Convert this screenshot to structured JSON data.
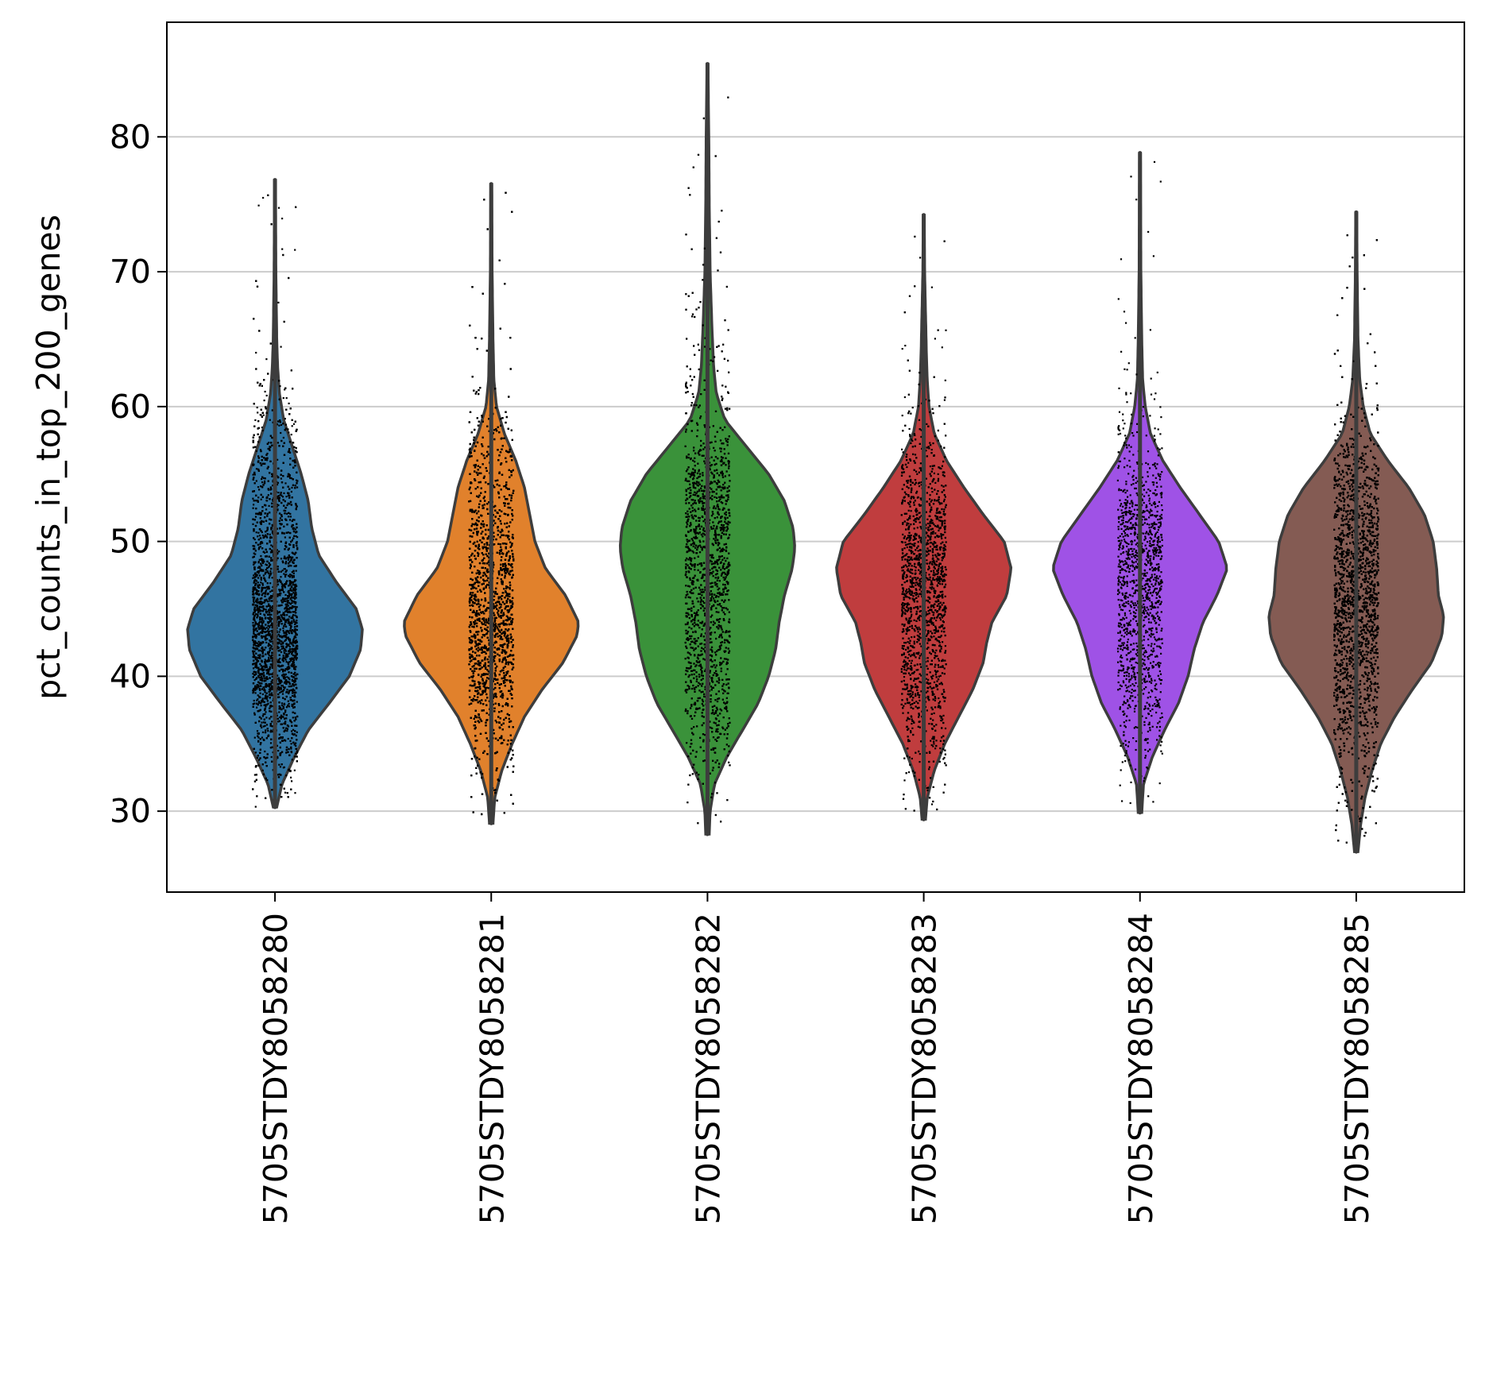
{
  "chart_data": {
    "type": "violin",
    "ylabel": "pct_counts_in_top_200_genes",
    "xlabel": "",
    "ylim": [
      24,
      88.5
    ],
    "yticks": [
      30,
      40,
      50,
      60,
      70,
      80
    ],
    "grid": "horizontal",
    "legend": "none",
    "categories": [
      "5705STDY8058280",
      "5705STDY8058281",
      "5705STDY8058282",
      "5705STDY8058283",
      "5705STDY8058284",
      "5705STDY8058285"
    ],
    "colors": [
      "#3274a1",
      "#e1812c",
      "#3a923a",
      "#c03d3e",
      "#9f52e6",
      "#845b53"
    ],
    "point_color": "#000000",
    "outline_color": "#3d3d3d",
    "series": [
      {
        "range": [
          30.3,
          76.8
        ],
        "n_points": 5200,
        "density": [
          [
            30.3,
            0.02
          ],
          [
            32,
            0.08
          ],
          [
            34,
            0.22
          ],
          [
            36,
            0.38
          ],
          [
            38,
            0.62
          ],
          [
            40,
            0.85
          ],
          [
            42,
            0.98
          ],
          [
            43.5,
            1.0
          ],
          [
            45,
            0.93
          ],
          [
            47,
            0.7
          ],
          [
            49,
            0.5
          ],
          [
            51,
            0.42
          ],
          [
            53,
            0.38
          ],
          [
            55,
            0.3
          ],
          [
            57,
            0.2
          ],
          [
            59,
            0.1
          ],
          [
            61,
            0.05
          ],
          [
            63,
            0.03
          ],
          [
            65,
            0.02
          ],
          [
            70,
            0.01
          ],
          [
            76.8,
            0.005
          ]
        ]
      },
      {
        "range": [
          29.1,
          76.5
        ],
        "n_points": 5600,
        "density": [
          [
            29.1,
            0.02
          ],
          [
            31,
            0.04
          ],
          [
            33,
            0.12
          ],
          [
            35,
            0.24
          ],
          [
            37,
            0.38
          ],
          [
            39,
            0.58
          ],
          [
            41,
            0.82
          ],
          [
            43,
            0.98
          ],
          [
            44,
            1.0
          ],
          [
            46,
            0.85
          ],
          [
            48,
            0.62
          ],
          [
            50,
            0.5
          ],
          [
            52,
            0.44
          ],
          [
            54,
            0.38
          ],
          [
            56,
            0.28
          ],
          [
            58,
            0.15
          ],
          [
            60,
            0.06
          ],
          [
            62,
            0.03
          ],
          [
            65,
            0.02
          ],
          [
            70,
            0.01
          ],
          [
            76.5,
            0.005
          ]
        ]
      },
      {
        "range": [
          28.3,
          85.4
        ],
        "n_points": 3200,
        "density": [
          [
            28.3,
            0.02
          ],
          [
            30,
            0.03
          ],
          [
            32,
            0.08
          ],
          [
            34,
            0.22
          ],
          [
            36,
            0.4
          ],
          [
            38,
            0.58
          ],
          [
            40,
            0.7
          ],
          [
            42,
            0.78
          ],
          [
            44,
            0.82
          ],
          [
            46,
            0.88
          ],
          [
            48,
            0.97
          ],
          [
            49.5,
            1.0
          ],
          [
            51,
            0.98
          ],
          [
            53,
            0.88
          ],
          [
            55,
            0.7
          ],
          [
            57,
            0.45
          ],
          [
            59,
            0.2
          ],
          [
            61,
            0.1
          ],
          [
            63,
            0.07
          ],
          [
            66,
            0.05
          ],
          [
            70,
            0.03
          ],
          [
            75,
            0.02
          ],
          [
            80,
            0.015
          ],
          [
            85.4,
            0.005
          ]
        ]
      },
      {
        "range": [
          29.4,
          74.2
        ],
        "n_points": 2600,
        "density": [
          [
            29.4,
            0.02
          ],
          [
            31,
            0.04
          ],
          [
            33,
            0.12
          ],
          [
            35,
            0.24
          ],
          [
            37,
            0.4
          ],
          [
            39,
            0.56
          ],
          [
            41,
            0.68
          ],
          [
            42.5,
            0.72
          ],
          [
            44,
            0.78
          ],
          [
            46,
            0.95
          ],
          [
            48,
            1.0
          ],
          [
            50,
            0.92
          ],
          [
            52,
            0.68
          ],
          [
            54,
            0.46
          ],
          [
            56,
            0.26
          ],
          [
            58,
            0.12
          ],
          [
            60,
            0.06
          ],
          [
            62,
            0.04
          ],
          [
            64,
            0.03
          ],
          [
            67,
            0.02
          ],
          [
            70,
            0.01
          ],
          [
            74.2,
            0.005
          ]
        ]
      },
      {
        "range": [
          29.9,
          78.8
        ],
        "n_points": 1400,
        "density": [
          [
            29.9,
            0.02
          ],
          [
            32,
            0.04
          ],
          [
            34,
            0.14
          ],
          [
            36,
            0.28
          ],
          [
            38,
            0.44
          ],
          [
            40,
            0.55
          ],
          [
            42,
            0.62
          ],
          [
            44,
            0.72
          ],
          [
            46,
            0.88
          ],
          [
            48,
            1.0
          ],
          [
            50,
            0.9
          ],
          [
            52,
            0.68
          ],
          [
            54,
            0.46
          ],
          [
            56,
            0.26
          ],
          [
            58,
            0.12
          ],
          [
            60,
            0.06
          ],
          [
            62,
            0.03
          ],
          [
            65,
            0.02
          ],
          [
            70,
            0.01
          ],
          [
            78.8,
            0.005
          ]
        ]
      },
      {
        "range": [
          27.0,
          74.4
        ],
        "n_points": 5200,
        "density": [
          [
            27,
            0.02
          ],
          [
            29,
            0.05
          ],
          [
            31,
            0.1
          ],
          [
            33,
            0.18
          ],
          [
            35,
            0.28
          ],
          [
            37,
            0.44
          ],
          [
            39,
            0.64
          ],
          [
            41,
            0.86
          ],
          [
            43,
            0.98
          ],
          [
            44.5,
            1.0
          ],
          [
            46,
            0.94
          ],
          [
            48,
            0.92
          ],
          [
            50,
            0.88
          ],
          [
            52,
            0.78
          ],
          [
            54,
            0.6
          ],
          [
            56,
            0.36
          ],
          [
            58,
            0.16
          ],
          [
            60,
            0.08
          ],
          [
            62,
            0.04
          ],
          [
            65,
            0.02
          ],
          [
            70,
            0.01
          ],
          [
            74.4,
            0.005
          ]
        ]
      }
    ]
  }
}
